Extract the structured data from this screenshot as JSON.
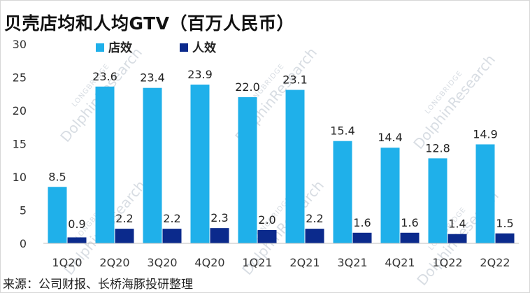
{
  "title": "贝壳店均和人均GTV（百万人民币）",
  "source": "来源：公司财报、长桥海豚投研整理",
  "watermark": {
    "text": "DolphinResearch",
    "small_text": "LONGBRIDGE"
  },
  "colors": {
    "store": "#1fb0ea",
    "person": "#0b2a8c",
    "axis": "#bfbfbf"
  },
  "chart_data": {
    "type": "bar",
    "categories": [
      "1Q20",
      "2Q20",
      "3Q20",
      "4Q20",
      "1Q21",
      "2Q21",
      "3Q21",
      "4Q21",
      "1Q22",
      "2Q22"
    ],
    "series": [
      {
        "name": "店效",
        "values": [
          8.5,
          23.6,
          23.4,
          23.9,
          22.0,
          23.1,
          15.4,
          14.4,
          12.8,
          14.9
        ],
        "labels": [
          "8.5",
          "23.6",
          "23.4",
          "23.9",
          "22.0",
          "23.1",
          "15.4",
          "14.4",
          "12.8",
          "14.9"
        ]
      },
      {
        "name": "人效",
        "values": [
          0.9,
          2.2,
          2.2,
          2.3,
          2.0,
          2.2,
          1.6,
          1.6,
          1.4,
          1.5
        ],
        "labels": [
          "0.9",
          "2.2",
          "2.2",
          "2.3",
          "2.0",
          "2.2",
          "1.6",
          "1.6",
          "1.4",
          "1.5"
        ]
      }
    ],
    "yticks": [
      "0",
      "5",
      "10",
      "15",
      "20",
      "25",
      "30"
    ],
    "ylim": [
      0,
      30
    ],
    "legend_position": "top-left",
    "grid": false
  }
}
